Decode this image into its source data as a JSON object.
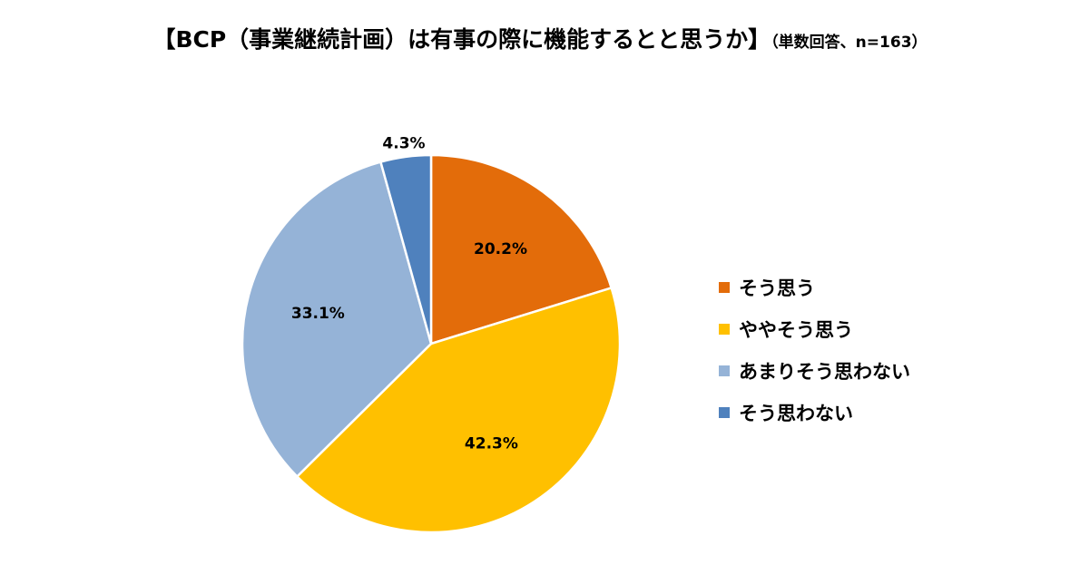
{
  "chart_data": {
    "type": "pie",
    "title": "【BCP（事業継続計画）は有事の際に機能するとと思うか】",
    "subtitle": "（単数回答、n=163）",
    "categories": [
      "そう思う",
      "ややそう思う",
      "あまりそう思わない",
      "そう思わない"
    ],
    "values": [
      20.2,
      42.3,
      33.1,
      4.3
    ],
    "labels": [
      "20.2%",
      "42.3%",
      "33.1%",
      "4.3%"
    ],
    "colors": [
      "#E36C0A",
      "#FFC000",
      "#95B3D7",
      "#4F81BD"
    ],
    "legend": "right",
    "start_angle": "12 o'clock",
    "direction": "clockwise"
  }
}
